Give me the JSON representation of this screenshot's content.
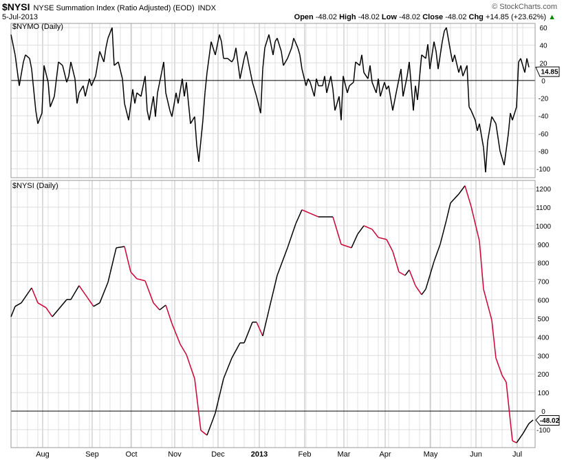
{
  "header": {
    "symbol": "$NYSI",
    "name": "NYSE Summation Index (Ratio Adjusted) (EOD)",
    "exchange": "INDX",
    "date": "5-Jul-2013",
    "brand": "© StockCharts.com",
    "open_label": "Open",
    "open": "-48.02",
    "high_label": "High",
    "high": "-48.02",
    "low_label": "Low",
    "low": "-48.02",
    "close_label": "Close",
    "close": "-48.02",
    "chg_label": "Chg",
    "chg": "+14.85 (+23.62%)",
    "chg_arrow": "▲"
  },
  "chart_data": [
    {
      "type": "line",
      "title": "$NYMO (Daily)",
      "ylim": [
        -110,
        70
      ],
      "yticks": [
        60,
        40,
        20,
        0,
        -20,
        -40,
        -60,
        -80,
        -100
      ],
      "last_value_label": "14.85",
      "color": "#000000",
      "x": [
        0,
        2,
        4,
        6,
        7,
        9,
        10,
        12,
        13,
        15,
        16,
        18,
        19,
        21,
        23,
        25,
        27,
        28,
        29,
        31,
        32,
        33,
        35,
        36,
        38,
        39,
        41,
        43,
        45,
        46,
        47,
        49,
        50,
        52,
        54,
        55,
        57,
        59,
        60,
        61,
        63,
        65,
        66,
        67,
        69,
        70,
        71,
        73,
        74,
        75,
        77,
        78,
        80,
        81,
        83,
        84,
        85,
        87,
        89,
        90,
        91,
        93,
        94,
        95,
        97,
        99,
        101,
        102,
        103,
        105,
        107,
        108,
        109,
        111,
        113,
        114,
        115,
        117,
        119,
        121,
        122,
        123,
        125,
        127,
        128,
        129,
        131,
        132,
        134,
        136,
        137,
        139,
        140,
        141,
        143,
        144,
        145,
        147,
        148,
        149,
        151,
        152,
        153,
        155,
        156,
        157,
        159,
        160,
        161,
        163,
        164,
        166,
        167,
        169,
        170,
        171,
        173,
        174,
        175,
        177,
        178,
        179,
        181,
        182,
        183,
        185,
        186,
        187,
        189,
        190,
        192,
        193,
        195,
        196,
        197,
        199,
        201,
        202,
        203,
        205,
        206,
        207,
        209,
        210,
        211,
        213,
        214,
        215,
        217,
        218,
        219,
        221,
        222,
        223,
        225,
        226,
        227,
        229,
        230,
        231,
        233,
        234,
        235,
        237,
        239,
        241,
        242,
        243,
        245,
        246,
        247,
        249,
        250,
        251
      ],
      "values": [
        52,
        29,
        -6,
        21,
        29,
        25,
        13,
        -34,
        -49,
        -37,
        17,
        -2,
        -30,
        -18,
        21,
        17,
        -2,
        5,
        21,
        2,
        -26,
        -14,
        -6,
        -18,
        2,
        -6,
        5,
        33,
        21,
        37,
        48,
        60,
        17,
        21,
        2,
        -26,
        -45,
        -10,
        -26,
        -14,
        -18,
        5,
        -34,
        -45,
        -18,
        -41,
        -14,
        9,
        21,
        -14,
        -34,
        -41,
        -14,
        -26,
        2,
        -18,
        -2,
        -49,
        -41,
        -73,
        -92,
        -45,
        -14,
        9,
        44,
        29,
        52,
        44,
        25,
        25,
        21,
        25,
        37,
        2,
        25,
        33,
        21,
        -2,
        -18,
        -37,
        13,
        37,
        52,
        29,
        44,
        48,
        33,
        17,
        25,
        37,
        48,
        37,
        29,
        13,
        -6,
        2,
        -2,
        -18,
        2,
        -6,
        -6,
        5,
        -14,
        5,
        -10,
        -34,
        -18,
        -45,
        5,
        -14,
        -6,
        -2,
        21,
        17,
        29,
        9,
        2,
        17,
        -2,
        -14,
        2,
        -18,
        -2,
        -10,
        -6,
        -34,
        -22,
        -10,
        13,
        -18,
        5,
        21,
        -34,
        -6,
        -22,
        29,
        25,
        41,
        13,
        44,
        33,
        13,
        44,
        56,
        60,
        33,
        21,
        29,
        9,
        17,
        5,
        17,
        -30,
        -34,
        -45,
        -57,
        -49,
        -76,
        -104,
        -69,
        -41,
        -45,
        -49,
        -80,
        -96,
        -61,
        -37,
        -45,
        -30,
        21,
        25,
        9,
        25,
        15
      ]
    },
    {
      "type": "line",
      "title": "$NYSI (Daily)",
      "ylim": [
        -240,
        1260
      ],
      "yticks": [
        1200,
        1100,
        1000,
        900,
        800,
        700,
        600,
        500,
        400,
        300,
        200,
        100,
        0,
        -100
      ],
      "last_value_label": "-48.02",
      "up_color": "#000000",
      "down_color": "#cc0033",
      "x": [
        0,
        2,
        5,
        10,
        13,
        17,
        20,
        27,
        29,
        33,
        37,
        40,
        43,
        47,
        51,
        55,
        58,
        61,
        65,
        69,
        72,
        75,
        78,
        82,
        85,
        89,
        92,
        95,
        99,
        103,
        107,
        111,
        113,
        117,
        119,
        122,
        125,
        129,
        134,
        138,
        141,
        145,
        149,
        151,
        156,
        160,
        165,
        168,
        171,
        175,
        178,
        182,
        185,
        188,
        191,
        193,
        196,
        199,
        201,
        203,
        205,
        208,
        211,
        213,
        217,
        220,
        223,
        227,
        229,
        233,
        235,
        238,
        240,
        243,
        245,
        248,
        251,
        253
      ],
      "values": [
        509,
        565,
        584,
        665,
        584,
        558,
        509,
        602,
        602,
        677,
        613,
        565,
        584,
        695,
        881,
        888,
        751,
        714,
        703,
        584,
        546,
        572,
        472,
        361,
        305,
        175,
        -104,
        -130,
        -11,
        175,
        286,
        368,
        368,
        480,
        480,
        405,
        546,
        732,
        881,
        1011,
        1086,
        1067,
        1048,
        1048,
        1048,
        900,
        881,
        955,
        1000,
        981,
        937,
        926,
        862,
        751,
        732,
        762,
        677,
        628,
        658,
        732,
        807,
        900,
        1030,
        1123,
        1171,
        1216,
        1104,
        918,
        658,
        491,
        286,
        193,
        156,
        -160,
        -171,
        -123,
        -67,
        -48
      ]
    }
  ],
  "x_axis": {
    "labels": [
      {
        "text": "Aug",
        "day": 18
      },
      {
        "text": "Sep",
        "day": 42
      },
      {
        "text": "Oct",
        "day": 61
      },
      {
        "text": "Nov",
        "day": 82
      },
      {
        "text": "Dec",
        "day": 103
      },
      {
        "text": "2013",
        "day": 123
      },
      {
        "text": "Feb",
        "day": 145
      },
      {
        "text": "Mar",
        "day": 164
      },
      {
        "text": "Apr",
        "day": 184
      },
      {
        "text": "May",
        "day": 206
      },
      {
        "text": "Jun",
        "day": 228
      },
      {
        "text": "Jul",
        "day": 248
      }
    ]
  }
}
